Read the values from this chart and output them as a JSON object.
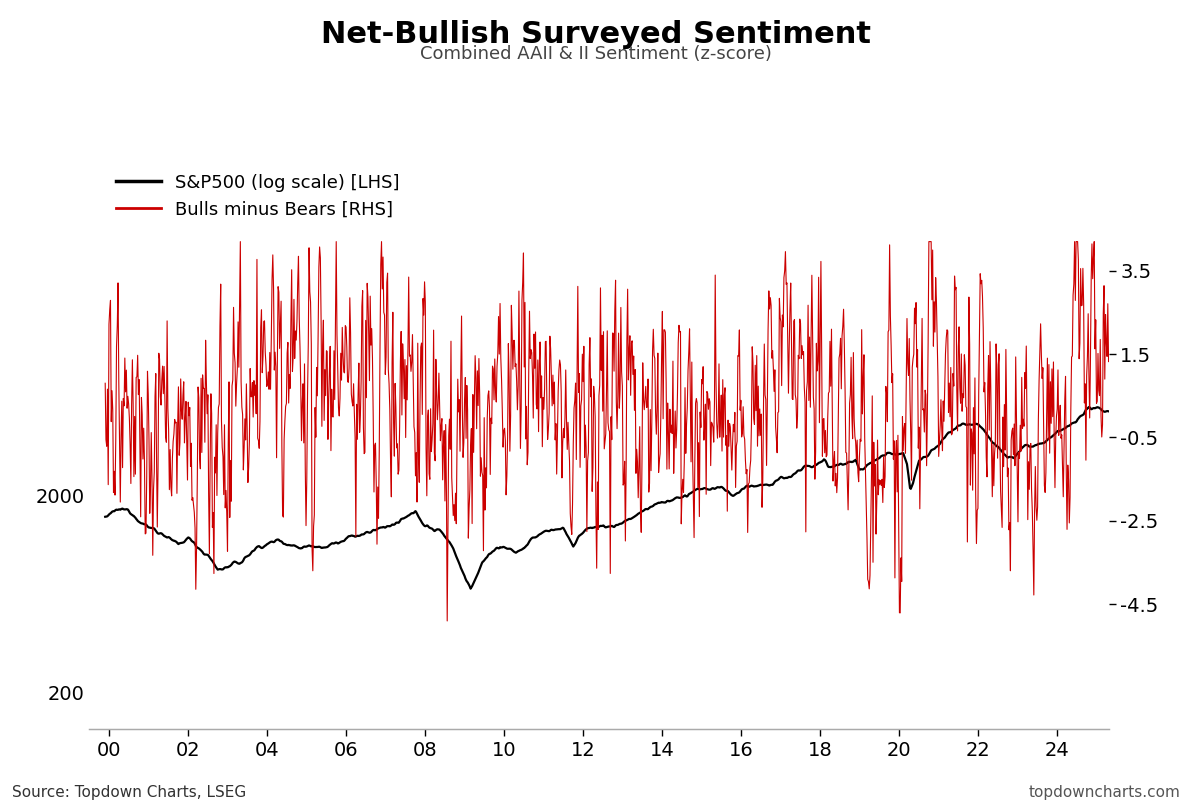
{
  "title": "Net-Bullish Surveyed Sentiment",
  "subtitle": "Combined AAII & II Sentiment (z-score)",
  "legend_sp500": "S&P500 (log scale) [LHS]",
  "legend_sentiment": "Bulls minus Bears [RHS]",
  "source_left": "Source: Topdown Charts, LSEG",
  "source_right": "topdowncharts.com",
  "sp500_color": "#000000",
  "sentiment_color": "#cc0000",
  "background_color": "#ffffff",
  "lhs_yticks": [
    200,
    2000
  ],
  "lhs_ylim_log": [
    130,
    120000
  ],
  "rhs_yticks": [
    -4.5,
    -2.5,
    -0.5,
    1.5,
    3.5
  ],
  "rhs_ylim": [
    -7.5,
    6.5
  ],
  "x_ticks": [
    2000,
    2002,
    2004,
    2006,
    2008,
    2010,
    2012,
    2014,
    2016,
    2018,
    2020,
    2022,
    2024
  ],
  "x_tick_labels": [
    "00",
    "02",
    "04",
    "06",
    "08",
    "10",
    "12",
    "14",
    "16",
    "18",
    "20",
    "22",
    "24"
  ],
  "xlim": [
    1999.5,
    2025.3
  ],
  "title_fontsize": 22,
  "subtitle_fontsize": 13,
  "tick_fontsize": 14,
  "source_fontsize": 11,
  "legend_fontsize": 13,
  "sp500_linewidth": 1.6,
  "sentiment_linewidth": 0.8
}
